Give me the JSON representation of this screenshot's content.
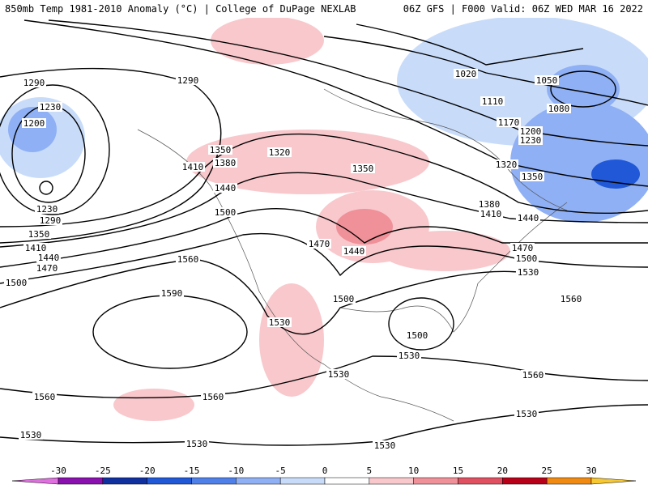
{
  "header": {
    "left": "850mb Temp 1981-2010 Anomaly (°C) | College of DuPage NEXLAB",
    "right": "06Z GFS | F000 Valid: 06Z WED MAR 16 2022"
  },
  "contours": {
    "labels": [
      "1290",
      "1290",
      "1230",
      "1200",
      "1230",
      "1290",
      "1350",
      "1410",
      "1440",
      "1470",
      "1500",
      "1560",
      "1590",
      "1350",
      "1380",
      "1410",
      "1440",
      "1500",
      "1320",
      "1350",
      "1470",
      "1440",
      "1500",
      "1530",
      "1500",
      "1530",
      "1530",
      "1560",
      "1560",
      "1530",
      "1530",
      "1530",
      "1530",
      "1560",
      "1560",
      "1530",
      "1500",
      "1470",
      "1440",
      "1410",
      "1380",
      "1350",
      "1320",
      "1230",
      "1200",
      "1170",
      "1110",
      "1080",
      "1050",
      "1020"
    ]
  },
  "colorbar": {
    "ticks": [
      -30,
      -25,
      -20,
      -15,
      -10,
      -5,
      0,
      5,
      10,
      15,
      20,
      25,
      30
    ],
    "colors": [
      "#e070e0",
      "#8a10b0",
      "#1030a0",
      "#2058d8",
      "#4f80ea",
      "#8fb0f4",
      "#c8dcfa",
      "#ffffff",
      "#f8c8cc",
      "#f09098",
      "#e05060",
      "#b80018",
      "#f08a10",
      "#f8c830"
    ]
  }
}
